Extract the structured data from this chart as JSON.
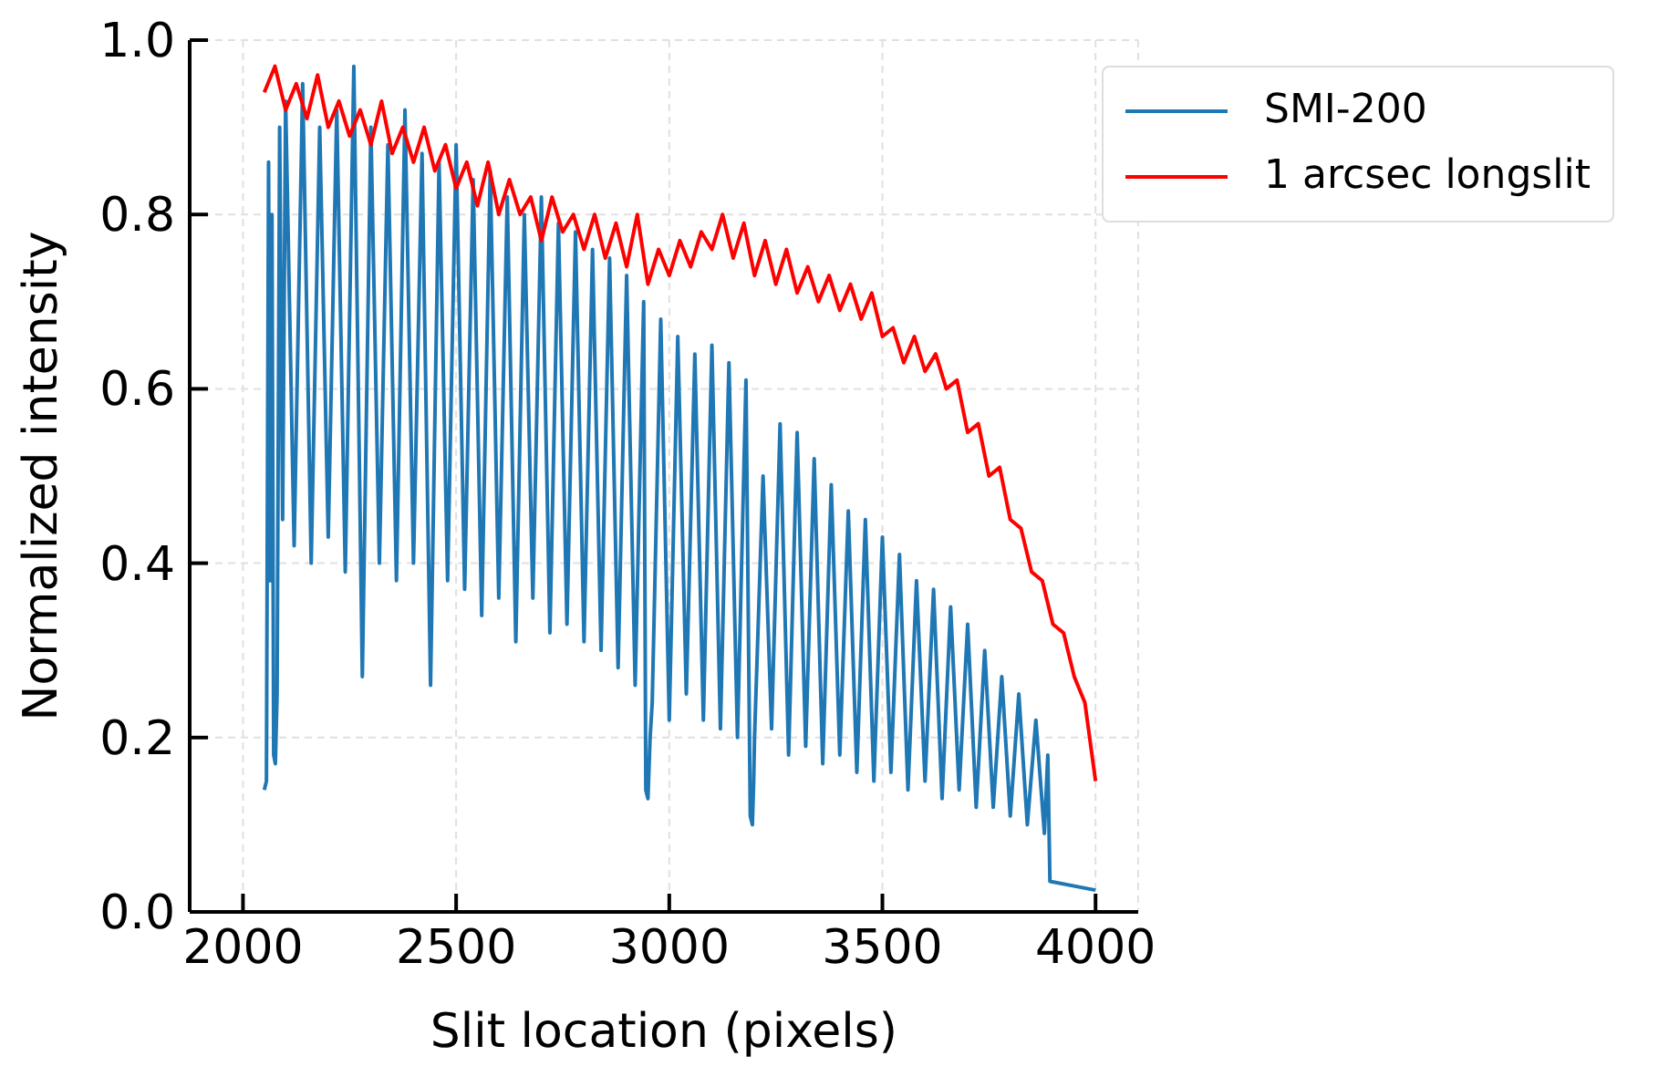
{
  "chart_data": {
    "type": "line",
    "xlabel": "Slit location (pixels)",
    "ylabel": "Normalized intensity",
    "xlim": [
      1875,
      4100
    ],
    "ylim": [
      0,
      1
    ],
    "xticks": [
      2000,
      2500,
      3000,
      3500,
      4000
    ],
    "yticks": [
      {
        "value": 0,
        "label": "0.0"
      },
      0.2,
      0.4,
      0.6,
      0.8,
      {
        "value": 1,
        "label": "1.0"
      }
    ],
    "grid": true,
    "legend": "top right",
    "marker": "none",
    "line_style": "solid",
    "series": [
      {
        "name": "SMI-200",
        "color": "#1f77b4",
        "x": [
          2050,
          2055,
          2060,
          2064,
          2068,
          2072,
          2076,
          2080,
          2086,
          2093,
          2100,
          2120,
          2140,
          2160,
          2180,
          2200,
          2220,
          2240,
          2260,
          2280,
          2300,
          2320,
          2340,
          2360,
          2380,
          2400,
          2420,
          2440,
          2460,
          2480,
          2500,
          2520,
          2540,
          2560,
          2580,
          2600,
          2620,
          2640,
          2660,
          2680,
          2700,
          2720,
          2740,
          2760,
          2780,
          2800,
          2820,
          2840,
          2860,
          2880,
          2900,
          2920,
          2940,
          2945,
          2950,
          2955,
          2960,
          2980,
          3000,
          3020,
          3040,
          3060,
          3080,
          3100,
          3120,
          3140,
          3160,
          3180,
          3190,
          3195,
          3198,
          3200,
          3220,
          3240,
          3260,
          3280,
          3300,
          3320,
          3340,
          3360,
          3380,
          3400,
          3420,
          3440,
          3460,
          3480,
          3500,
          3520,
          3540,
          3560,
          3580,
          3600,
          3620,
          3640,
          3660,
          3680,
          3700,
          3720,
          3740,
          3760,
          3780,
          3800,
          3820,
          3840,
          3860,
          3880,
          3888,
          3893,
          4000
        ],
        "values": [
          0.14,
          0.15,
          0.86,
          0.38,
          0.8,
          0.18,
          0.17,
          0.25,
          0.9,
          0.45,
          0.93,
          0.42,
          0.95,
          0.4,
          0.9,
          0.43,
          0.92,
          0.39,
          0.97,
          0.27,
          0.9,
          0.4,
          0.88,
          0.38,
          0.92,
          0.4,
          0.87,
          0.26,
          0.86,
          0.38,
          0.88,
          0.37,
          0.84,
          0.34,
          0.85,
          0.36,
          0.82,
          0.31,
          0.8,
          0.36,
          0.82,
          0.32,
          0.79,
          0.33,
          0.78,
          0.31,
          0.76,
          0.3,
          0.75,
          0.28,
          0.73,
          0.26,
          0.7,
          0.14,
          0.13,
          0.2,
          0.24,
          0.68,
          0.22,
          0.66,
          0.25,
          0.64,
          0.22,
          0.65,
          0.21,
          0.63,
          0.2,
          0.61,
          0.11,
          0.1,
          0.15,
          0.2,
          0.5,
          0.21,
          0.56,
          0.18,
          0.55,
          0.19,
          0.52,
          0.17,
          0.49,
          0.18,
          0.46,
          0.16,
          0.45,
          0.15,
          0.43,
          0.16,
          0.41,
          0.14,
          0.38,
          0.15,
          0.37,
          0.13,
          0.35,
          0.14,
          0.33,
          0.12,
          0.3,
          0.12,
          0.27,
          0.11,
          0.25,
          0.1,
          0.22,
          0.09,
          0.18,
          0.035,
          0.025
        ]
      },
      {
        "name": "1 arcsec longslit",
        "color": "#ff0000",
        "x": [
          2050,
          2075,
          2100,
          2125,
          2150,
          2175,
          2200,
          2225,
          2250,
          2275,
          2300,
          2325,
          2350,
          2375,
          2400,
          2425,
          2450,
          2475,
          2500,
          2525,
          2550,
          2575,
          2600,
          2625,
          2650,
          2675,
          2700,
          2725,
          2750,
          2775,
          2800,
          2825,
          2850,
          2875,
          2900,
          2925,
          2950,
          2975,
          3000,
          3025,
          3050,
          3075,
          3100,
          3125,
          3150,
          3175,
          3200,
          3225,
          3250,
          3275,
          3300,
          3325,
          3350,
          3375,
          3400,
          3425,
          3450,
          3475,
          3500,
          3525,
          3550,
          3575,
          3600,
          3625,
          3650,
          3675,
          3700,
          3725,
          3750,
          3775,
          3800,
          3825,
          3850,
          3875,
          3900,
          3925,
          3950,
          3975,
          4000
        ],
        "values": [
          0.94,
          0.97,
          0.92,
          0.95,
          0.91,
          0.96,
          0.9,
          0.93,
          0.89,
          0.92,
          0.88,
          0.93,
          0.87,
          0.9,
          0.86,
          0.9,
          0.85,
          0.88,
          0.83,
          0.86,
          0.81,
          0.86,
          0.8,
          0.84,
          0.8,
          0.82,
          0.77,
          0.82,
          0.78,
          0.8,
          0.76,
          0.8,
          0.75,
          0.79,
          0.74,
          0.8,
          0.72,
          0.76,
          0.73,
          0.77,
          0.74,
          0.78,
          0.76,
          0.8,
          0.75,
          0.79,
          0.73,
          0.77,
          0.72,
          0.76,
          0.71,
          0.74,
          0.7,
          0.73,
          0.69,
          0.72,
          0.68,
          0.71,
          0.66,
          0.67,
          0.63,
          0.66,
          0.62,
          0.64,
          0.6,
          0.61,
          0.55,
          0.56,
          0.5,
          0.51,
          0.45,
          0.44,
          0.39,
          0.38,
          0.33,
          0.32,
          0.27,
          0.24,
          0.15
        ]
      }
    ]
  }
}
